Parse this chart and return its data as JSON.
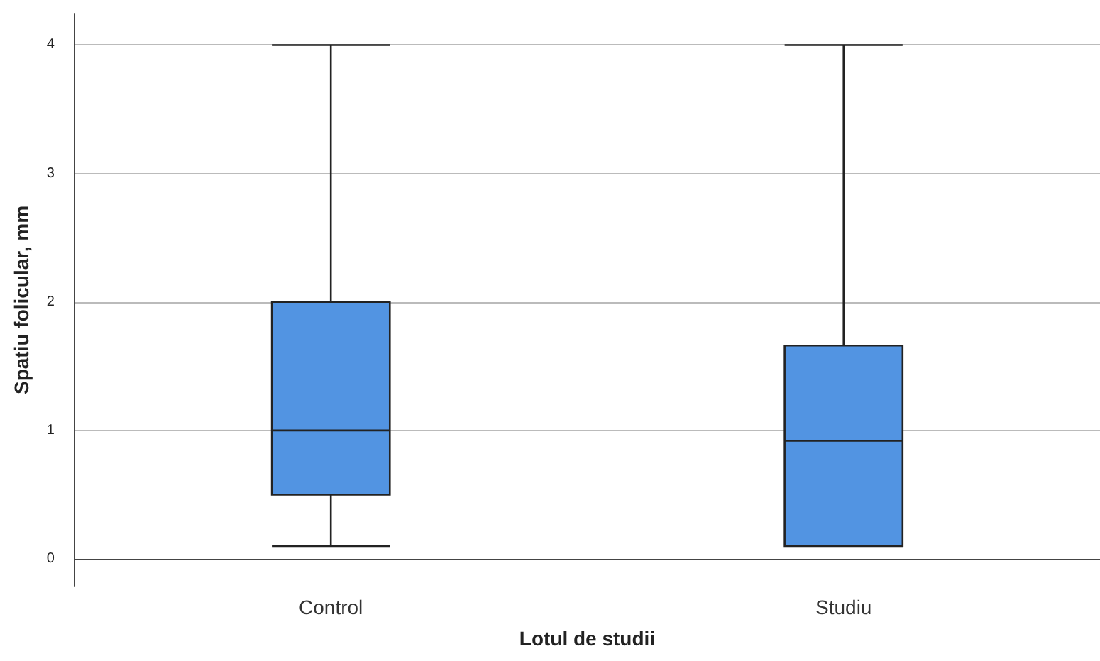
{
  "chart_data": {
    "type": "box",
    "xlabel": "Lotul de studii",
    "ylabel": "Spatiu folicular, mm",
    "categories": [
      "Control",
      "Studiu"
    ],
    "color": "#5294e2",
    "boxes": [
      {
        "low": 0.1,
        "q1": 0.5,
        "median": 1.0,
        "q3": 2.0,
        "high": 4.0
      },
      {
        "low": 0.1,
        "q1": 0.1,
        "median": 0.92,
        "q3": 1.66,
        "high": 4.0
      }
    ],
    "ylim": [
      -0.21,
      4.24
    ],
    "yticks": [
      0,
      1,
      2,
      3,
      4
    ],
    "grid": "y"
  }
}
